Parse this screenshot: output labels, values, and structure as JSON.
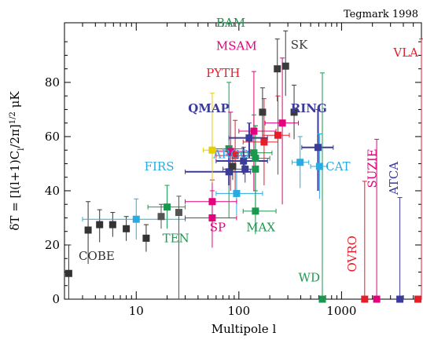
{
  "chart_data": {
    "type": "scatter",
    "title": "Tegmark 1998",
    "xlabel": "Multipole l",
    "ylabel": "δT = [l(l+1)Cₗ/2π]¹ᐟ² μK",
    "ylabel_parts": {
      "pre": "δT = [l(l+1)C",
      "sub": "l",
      "mid": "/2π]",
      "sup": "1/2",
      "post": " μK"
    },
    "xscale": "log",
    "xlim": [
      2,
      6000
    ],
    "ylim": [
      0,
      102
    ],
    "x_ticks": [
      10,
      100,
      1000
    ],
    "x_tick_labels": [
      "10",
      "100",
      "1000"
    ],
    "y_ticks": [
      0,
      20,
      40,
      60,
      80
    ],
    "y_tick_labels": [
      "0",
      "20",
      "40",
      "60",
      "80"
    ],
    "grid": false,
    "series": [
      {
        "name": "COBE",
        "color": "#333333",
        "label_pos": [
          2.75,
          14.5
        ],
        "points": [
          {
            "x": 2.2,
            "y": 9.5,
            "ylo": 0,
            "yhi": 20
          },
          {
            "x": 3.4,
            "y": 25.5,
            "ylo": 13,
            "yhi": 36
          },
          {
            "x": 4.4,
            "y": 27.5,
            "ylo": 21,
            "yhi": 33
          },
          {
            "x": 5.9,
            "y": 27.5,
            "ylo": 23,
            "yhi": 32
          },
          {
            "x": 8.0,
            "y": 26,
            "ylo": 21.5,
            "yhi": 30.5
          },
          {
            "x": 12.5,
            "y": 22.5,
            "ylo": 17.5,
            "yhi": 27.5
          }
        ]
      },
      {
        "name": "TEN",
        "color": "#1a9850",
        "label_pos": [
          18,
          21
        ],
        "points": [
          {
            "x": 20,
            "y": 34,
            "ylo": 26,
            "yhi": 42,
            "xlo": 13,
            "xhi": 30
          }
        ]
      },
      {
        "name": "FIRS",
        "color": "#29abe2",
        "label_pos": [
          12,
          47.5
        ],
        "points": [
          {
            "x": 10,
            "y": 29.5,
            "ylo": 22,
            "yhi": 37,
            "xlo": 3,
            "xhi": 30
          }
        ]
      },
      {
        "name": "ARGO",
        "color": "#29abe2",
        "label_pos": [
          56,
          52
        ],
        "points": [
          {
            "x": 95,
            "y": 39,
            "ylo": 31,
            "yhi": 47,
            "xlo": 60,
            "xhi": 170
          }
        ]
      },
      {
        "name": "SP",
        "color": "#e6007e",
        "label_pos": [
          52,
          25
        ],
        "points": [
          {
            "x": 55,
            "y": 30,
            "ylo": 19,
            "yhi": 40,
            "xlo": 30,
            "xhi": 95
          },
          {
            "x": 55,
            "y": 36,
            "ylo": 28,
            "yhi": 44,
            "xlo": 30,
            "xhi": 95
          }
        ]
      },
      {
        "name": "MAX",
        "color": "#1a9850",
        "label_pos": [
          118,
          25
        ],
        "points": [
          {
            "x": 145,
            "y": 32.5,
            "ylo": 24,
            "yhi": 40,
            "xlo": 110,
            "xhi": 230
          },
          {
            "x": 140,
            "y": 54,
            "ylo": 40,
            "yhi": 68,
            "xlo": 90,
            "xhi": 210
          },
          {
            "x": 145,
            "y": 48,
            "ylo": 32,
            "yhi": 64
          }
        ]
      },
      {
        "name": "BAM",
        "color": "#1a9850",
        "label_pos": [
          60,
          100.5
        ],
        "points": [
          {
            "x": 80,
            "y": 55.5,
            "ylo": 30,
            "yhi": 80,
            "xlo": 55,
            "xhi": 110
          }
        ]
      },
      {
        "name": "MSAM",
        "color": "#e6007e",
        "label_pos": [
          60,
          92
        ],
        "points": [
          {
            "x": 83,
            "y": 54.5,
            "ylo": 40,
            "yhi": 69,
            "xlo": 55,
            "xhi": 130
          },
          {
            "x": 140,
            "y": 62,
            "ylo": 40,
            "yhi": 84,
            "xlo": 100,
            "xhi": 230
          },
          {
            "x": 265,
            "y": 65,
            "ylo": 35,
            "yhi": 89,
            "xlo": 180,
            "xhi": 380
          }
        ]
      },
      {
        "name": "PYTH",
        "color": "#e61e28",
        "label_pos": [
          48,
          82
        ],
        "points": [
          {
            "x": 92,
            "y": 53,
            "ylo": 38,
            "yhi": 66,
            "xlo": 60,
            "xhi": 140
          },
          {
            "x": 176,
            "y": 58,
            "ylo": 42,
            "yhi": 74,
            "xlo": 110,
            "xhi": 240
          }
        ]
      },
      {
        "name": "QMAP",
        "color": "#3b3b9a",
        "label_pos": [
          32,
          69
        ],
        "points": [
          {
            "x": 80,
            "y": 47,
            "ylo": 42,
            "yhi": 53,
            "xlo": 30,
            "xhi": 130
          },
          {
            "x": 111,
            "y": 51,
            "ylo": 46,
            "yhi": 56,
            "xlo": 60,
            "xhi": 190
          },
          {
            "x": 126,
            "y": 59.5,
            "ylo": 52,
            "yhi": 65,
            "xlo": 80,
            "xhi": 190
          }
        ]
      },
      {
        "name": "SK",
        "color": "#3a3a3a",
        "label_pos": [
          320,
          92.5
        ],
        "points": [
          {
            "x": 87,
            "y": 49,
            "ylo": 44,
            "yhi": 55
          },
          {
            "x": 170,
            "y": 69,
            "ylo": 60,
            "yhi": 78
          },
          {
            "x": 237,
            "y": 85,
            "ylo": 73,
            "yhi": 96
          },
          {
            "x": 285,
            "y": 86,
            "ylo": 75,
            "yhi": 99
          },
          {
            "x": 345,
            "y": 69,
            "ylo": 59,
            "yhi": 79
          }
        ]
      },
      {
        "name": "RING",
        "color": "#3b3b9a",
        "label_pos": [
          320,
          69
        ],
        "points": [
          {
            "x": 590,
            "y": 56,
            "ylo": 40,
            "yhi": 70,
            "xlo": 410,
            "xhi": 830
          }
        ]
      },
      {
        "name": "CAT",
        "color": "#29abe2",
        "label_pos": [
          700,
          47.5
        ],
        "points": [
          {
            "x": 395,
            "y": 50.5,
            "ylo": 41,
            "yhi": 60,
            "xlo": 330,
            "xhi": 480
          },
          {
            "x": 610,
            "y": 49,
            "ylo": 37,
            "yhi": 61,
            "xlo": 500,
            "xhi": 730
          }
        ]
      },
      {
        "name": "WD",
        "color": "#1a9850",
        "label_pos": [
          380,
          6.5
        ],
        "points": [
          {
            "x": 650,
            "y": 0,
            "ylo": 0,
            "yhi": 83.5
          }
        ]
      },
      {
        "name": "OVRO",
        "color": "#e61e28",
        "label_pos": [
          1390,
          10
        ],
        "points": [
          {
            "x": 1680,
            "y": 0,
            "ylo": 0,
            "yhi": 43.5
          }
        ]
      },
      {
        "name": "SUZIE",
        "color": "#e6007e",
        "label_pos": [
          2180,
          41
        ],
        "points": [
          {
            "x": 2200,
            "y": 0,
            "ylo": 0,
            "yhi": 59
          }
        ]
      },
      {
        "name": "ATCA",
        "color": "#3b3b9a",
        "label_pos": [
          3520,
          38.5
        ],
        "points": [
          {
            "x": 3700,
            "y": 0,
            "ylo": 0,
            "yhi": 37.5
          }
        ]
      },
      {
        "name": "VLA",
        "color": "#e61e28",
        "label_pos": [
          4500,
          89.5
        ],
        "points": [
          {
            "x": 6000,
            "y": 0,
            "ylo": 0,
            "yhi": 96
          }
        ]
      },
      {
        "name": "BOOM",
        "label": "",
        "color": "#e6d000",
        "points": [
          {
            "x": 55,
            "y": 55,
            "ylo": 43,
            "yhi": 76,
            "xlo": 45,
            "xhi": 70
          }
        ]
      },
      {
        "name": "SASK",
        "label": "",
        "color": "#555555",
        "points": [
          {
            "x": 17.5,
            "y": 30.5,
            "ylo": 26,
            "yhi": 35
          },
          {
            "x": 26,
            "y": 32,
            "ylo": 0,
            "yhi": 38
          }
        ]
      },
      {
        "name": "PYTH2",
        "label": "",
        "color": "#e61e28",
        "points": [
          {
            "x": 240,
            "y": 60.5,
            "ylo": 46,
            "yhi": 75,
            "xlo": 170,
            "xhi": 310
          }
        ]
      },
      {
        "name": "MSAM2",
        "label": "",
        "color": "#3b3b9a",
        "points": [
          {
            "x": 115,
            "y": 48,
            "ylo": 43,
            "yhi": 53,
            "xlo": 70,
            "xhi": 140
          }
        ]
      },
      {
        "name": "GREEN2",
        "label": "",
        "color": "#1a9850",
        "points": [
          {
            "x": 145,
            "y": 52,
            "ylo": 40,
            "yhi": 64,
            "xlo": 110,
            "xhi": 200
          }
        ]
      }
    ]
  }
}
